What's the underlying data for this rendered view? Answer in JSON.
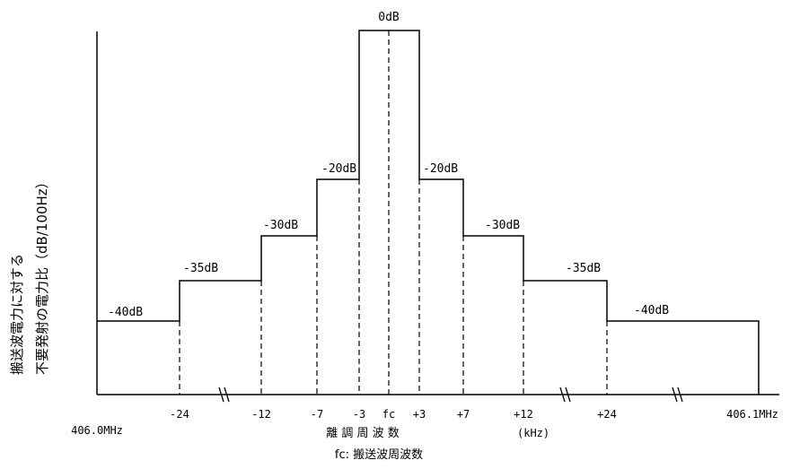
{
  "y_axis_label_line1": "搬送波電力に対する",
  "y_axis_label_line2": "不要発射の電力比（dB/100Hz）",
  "x_axis_label": "離 調 周 波 数",
  "x_axis_unit": "(kHz)",
  "fc_note": "fc: 搬送波周波数",
  "freq_left": "406.0MHz",
  "freq_right": "406.1MHz",
  "tick_labels": [
    "-24",
    "-12",
    "-7",
    "-3",
    "fc",
    "+3",
    "+7",
    "+12",
    "+24"
  ],
  "level_labels": [
    "0dB",
    "-20dB",
    "-30dB",
    "-35dB",
    "-40dB"
  ],
  "mask_steps": [
    {
      "from": "406.0MHz",
      "to": "-24",
      "level_db": -40,
      "label": "-40dB"
    },
    {
      "from": "-24",
      "to": "-12",
      "level_db": -35,
      "label": "-35dB"
    },
    {
      "from": "-12",
      "to": "-7",
      "level_db": -30,
      "label": "-30dB"
    },
    {
      "from": "-7",
      "to": "-3",
      "level_db": -20,
      "label": "-20dB"
    },
    {
      "from": "-3",
      "to": "+3",
      "level_db": 0,
      "label": "0dB"
    },
    {
      "from": "+3",
      "to": "+7",
      "level_db": -20,
      "label": "-20dB"
    },
    {
      "from": "+7",
      "to": "+12",
      "level_db": -30,
      "label": "-30dB"
    },
    {
      "from": "+12",
      "to": "+24",
      "level_db": -35,
      "label": "-35dB"
    },
    {
      "from": "+24",
      "to": "406.1MHz",
      "level_db": -40,
      "label": "-40dB"
    }
  ],
  "axis_breaks": 3
}
